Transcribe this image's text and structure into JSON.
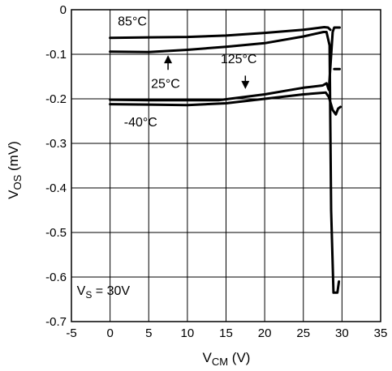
{
  "chart_data": {
    "type": "line",
    "title": "",
    "xlabel": {
      "main": "V",
      "sub": "CM",
      "unit": " (V)"
    },
    "ylabel": {
      "main": "V",
      "sub": "OS",
      "unit": " (mV)"
    },
    "xlim": [
      -5,
      35
    ],
    "ylim": [
      -0.7,
      0
    ],
    "xticks": [
      -5,
      0,
      5,
      10,
      15,
      20,
      25,
      30,
      35
    ],
    "yticks": [
      0,
      -0.1,
      -0.2,
      -0.3,
      -0.4,
      -0.5,
      -0.6,
      -0.7
    ],
    "xtick_labels": [
      "-5",
      "0",
      "5",
      "10",
      "15",
      "20",
      "25",
      "30",
      "35"
    ],
    "ytick_labels": [
      "0",
      "-0.1",
      "-0.2",
      "-0.3",
      "-0.4",
      "-0.5",
      "-0.6",
      "-0.7"
    ],
    "grid": true,
    "series": [
      {
        "name": "85°C",
        "points": [
          [
            0,
            -0.063
          ],
          [
            5,
            -0.062
          ],
          [
            10,
            -0.061
          ],
          [
            15,
            -0.058
          ],
          [
            20,
            -0.052
          ],
          [
            25,
            -0.045
          ],
          [
            27.7,
            -0.039
          ],
          [
            28.2,
            -0.04
          ],
          [
            28.5,
            -0.045
          ]
        ]
      },
      {
        "name": "25°C",
        "points": [
          [
            0,
            -0.094
          ],
          [
            5,
            -0.095
          ],
          [
            10,
            -0.09
          ],
          [
            15,
            -0.083
          ],
          [
            20,
            -0.075
          ],
          [
            25,
            -0.06
          ],
          [
            27.6,
            -0.05
          ],
          [
            28.0,
            -0.05
          ],
          [
            28.4,
            -0.08
          ],
          [
            28.6,
            -0.45
          ],
          [
            28.9,
            -0.635
          ],
          [
            29.4,
            -0.635
          ],
          [
            29.6,
            -0.61
          ]
        ]
      },
      {
        "name": "125°C",
        "points": [
          [
            0,
            -0.202
          ],
          [
            5,
            -0.203
          ],
          [
            10,
            -0.203
          ],
          [
            14,
            -0.203
          ],
          [
            20,
            -0.19
          ],
          [
            25,
            -0.175
          ],
          [
            27.5,
            -0.17
          ],
          [
            28.0,
            -0.165
          ],
          [
            28.3,
            -0.18
          ],
          [
            28.8,
            -0.05
          ],
          [
            29.0,
            -0.04
          ],
          [
            29.7,
            -0.04
          ]
        ]
      },
      {
        "name": "-40°C",
        "points": [
          [
            0,
            -0.212
          ],
          [
            5,
            -0.213
          ],
          [
            10,
            -0.214
          ],
          [
            15,
            -0.21
          ],
          [
            20,
            -0.2
          ],
          [
            25,
            -0.19
          ],
          [
            27.9,
            -0.186
          ],
          [
            28.3,
            -0.196
          ],
          [
            28.8,
            -0.225
          ],
          [
            29.2,
            -0.235
          ],
          [
            29.5,
            -0.222
          ],
          [
            29.8,
            -0.218
          ]
        ]
      }
    ],
    "stubs": [
      {
        "points": [
          [
            29.0,
            -0.133
          ],
          [
            29.7,
            -0.133
          ]
        ]
      }
    ],
    "annotations": [
      {
        "text": "85°C",
        "x": 1,
        "y": -0.035
      },
      {
        "text": "25°C",
        "x": 5.3,
        "y": -0.175
      },
      {
        "text": "125°C",
        "x": 14.3,
        "y": -0.12
      },
      {
        "text": "-40°C",
        "x": 1.8,
        "y": -0.262
      }
    ],
    "arrows": [
      {
        "from": [
          7.5,
          -0.135
        ],
        "to": [
          7.5,
          -0.102
        ]
      },
      {
        "from": [
          17.5,
          -0.148
        ],
        "to": [
          17.5,
          -0.178
        ]
      }
    ],
    "condition": {
      "main": "V",
      "sub": "S",
      "rest": " = 30V",
      "x": -4.3,
      "y": -0.64
    }
  }
}
